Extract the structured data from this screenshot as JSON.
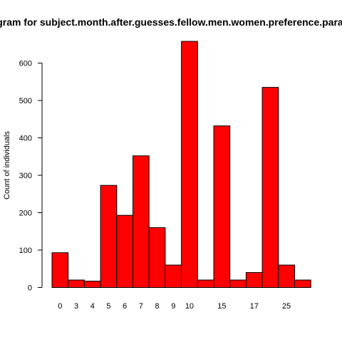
{
  "chart_data": {
    "type": "bar",
    "title": "Histogram for subject.month.after.guesses.fellow.men.women.preference.parameter",
    "xlabel": "",
    "ylabel": "Count of individuals",
    "bar_color": "#ff0000",
    "bar_border_color": "#000000",
    "ylim": [
      0,
      660
    ],
    "y_ticks": [
      0,
      100,
      200,
      300,
      400,
      500,
      600
    ],
    "grid": false,
    "legend": "none",
    "bins": [
      {
        "value": 93,
        "label": "0"
      },
      {
        "value": 20,
        "label": "3"
      },
      {
        "value": 17,
        "label": "4"
      },
      {
        "value": 273,
        "label": "5"
      },
      {
        "value": 193,
        "label": "6"
      },
      {
        "value": 352,
        "label": "7"
      },
      {
        "value": 160,
        "label": "8"
      },
      {
        "value": 60,
        "label": "9"
      },
      {
        "value": 658,
        "label": "10"
      },
      {
        "value": 20,
        "label": ""
      },
      {
        "value": 432,
        "label": "15"
      },
      {
        "value": 20,
        "label": ""
      },
      {
        "value": 40,
        "label": "17"
      },
      {
        "value": 535,
        "label": ""
      },
      {
        "value": 60,
        "label": "25"
      },
      {
        "value": 20,
        "label": ""
      }
    ]
  }
}
